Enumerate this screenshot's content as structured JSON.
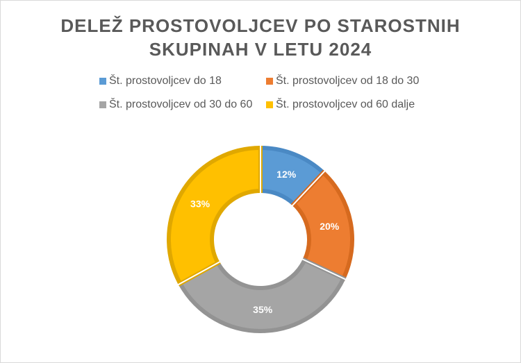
{
  "chart_data": {
    "type": "pie",
    "variant": "doughnut",
    "title": "DELEŽ PROSTOVOLJCEV PO STAROSTNIH SKUPINAH V LETU 2024",
    "title_lines": [
      "DELEŽ PROSTOVOLJCEV PO STAROSTNIH",
      "SKUPINAH V LETU 2024"
    ],
    "legend_position": "top",
    "categories": [
      "Št. prostovoljcev do 18",
      "Št. prostovoljcev od 18 do 30",
      "Št. prostovoljcev od 30 do 60",
      "Št. prostovoljcev od 60 dalje"
    ],
    "values": [
      12,
      20,
      35,
      33
    ],
    "data_labels": [
      "12%",
      "20%",
      "35%",
      "33%"
    ],
    "colors": [
      "#5b9bd5",
      "#ed7d31",
      "#a5a5a5",
      "#ffc000"
    ],
    "border_colors": [
      "#4a89c4",
      "#d66a1f",
      "#939393",
      "#e0a800"
    ]
  }
}
